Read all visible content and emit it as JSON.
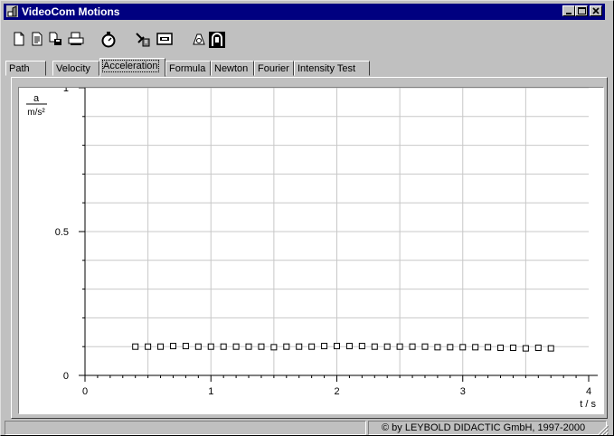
{
  "window": {
    "title": "VideoCom Motions"
  },
  "toolbar": {
    "buttons": [
      {
        "icon": "new-file-icon"
      },
      {
        "icon": "open-file-icon"
      },
      {
        "icon": "save-file-icon"
      },
      {
        "icon": "print-icon"
      },
      {
        "icon": "stopwatch-icon"
      },
      {
        "icon": "settings-icon"
      },
      {
        "icon": "display-icon"
      },
      {
        "icon": "camera-icon"
      },
      {
        "icon": "videocom-icon"
      }
    ]
  },
  "tabs": [
    "Path",
    "Velocity",
    "Acceleration",
    "Formula",
    "Newton",
    "Fourier",
    "Intensity Test"
  ],
  "active_tab": "Acceleration",
  "chart_data": {
    "type": "scatter",
    "y_symbol": "a",
    "y_unit": "m/s²",
    "x_label": "t / s",
    "xlim": [
      0,
      4
    ],
    "ylim": [
      0,
      1
    ],
    "x_ticks": [
      "0",
      "1",
      "2",
      "3",
      "4"
    ],
    "y_ticks": [
      "0",
      "0.5",
      "1"
    ],
    "grid": true,
    "marker": "open-square",
    "series": [
      {
        "x": [
          0.4,
          0.5,
          0.6,
          0.7,
          0.8,
          0.9,
          1.0,
          1.1,
          1.2,
          1.3,
          1.4,
          1.5,
          1.6,
          1.7,
          1.8,
          1.9,
          2.0,
          2.1,
          2.2,
          2.3,
          2.4,
          2.5,
          2.6,
          2.7,
          2.8,
          2.9,
          3.0,
          3.1,
          3.2,
          3.3,
          3.4,
          3.5,
          3.6,
          3.7
        ],
        "y": [
          0.1,
          0.1,
          0.1,
          0.102,
          0.102,
          0.1,
          0.1,
          0.1,
          0.1,
          0.1,
          0.1,
          0.098,
          0.1,
          0.1,
          0.1,
          0.102,
          0.102,
          0.102,
          0.102,
          0.1,
          0.1,
          0.1,
          0.1,
          0.1,
          0.098,
          0.098,
          0.098,
          0.098,
          0.098,
          0.096,
          0.096,
          0.094,
          0.096,
          0.094
        ]
      }
    ]
  },
  "status": {
    "copyright": "© by LEYBOLD DIDACTIC GmbH, 1997-2000"
  }
}
